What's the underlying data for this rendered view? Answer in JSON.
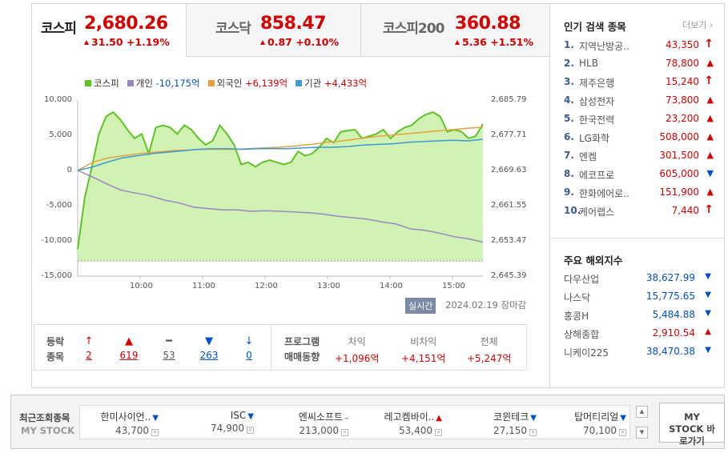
{
  "tabs": [
    {
      "name": "코스피",
      "value": "2,680.26",
      "change": "31.50 +1.19%"
    },
    {
      "name": "코스닥",
      "value": "858.47",
      "change": "0.87 +0.10%"
    },
    {
      "name": "코스피200",
      "value": "360.88",
      "change": "5.36 +1.51%"
    }
  ],
  "legend": {
    "kospi": "코스피",
    "individual_label": "개인",
    "individual_value": "-10,175억",
    "foreign_label": "외국인",
    "foreign_value": "+6,139억",
    "institution_label": "기관",
    "institution_value": "+4,433억"
  },
  "colors": {
    "up": "#d60000",
    "down": "#0050c8",
    "kospi_line": "#5cc524",
    "kospi_fill": "#c9f0a6",
    "individual": "#9b86c4",
    "foreign": "#e5a23c",
    "institution": "#3c9ad6"
  },
  "chart_data": {
    "type": "line",
    "x_ticks": [
      "10:00",
      "11:00",
      "12:00",
      "13:00",
      "14:00",
      "15:00"
    ],
    "y_left_ticks": [
      "10,000",
      "5,000",
      "0",
      "-5,000",
      "-10,000",
      "-15,000"
    ],
    "y_right_ticks": [
      "2,685.79",
      "2,677.71",
      "2,669.63",
      "2,661.55",
      "2,653.47",
      "2,645.39"
    ],
    "ylim_left": [
      -15000,
      10000
    ],
    "ylim_right": [
      2645.39,
      2685.79
    ],
    "series": [
      {
        "name": "코스피",
        "axis": "right",
        "values": [
          2651.6,
          2663.5,
          2670.5,
          2678.0,
          2682.0,
          2683.0,
          2681.3,
          2679.0,
          2677.0,
          2678.0,
          2673.5,
          2679.5,
          2680.0,
          2679.5,
          2678.0,
          2680.0,
          2679.0,
          2677.0,
          2675.5,
          2676.5,
          2680.0,
          2678.0,
          2675.5,
          2671.0,
          2671.5,
          2670.5,
          2671.5,
          2672.0,
          2671.5,
          2671.0,
          2671.5,
          2674.0,
          2673.0,
          2673.5,
          2675.0,
          2677.0,
          2676.0,
          2678.5,
          2678.8,
          2679.0,
          2677.0,
          2677.5,
          2678.0,
          2679.0,
          2677.0,
          2678.5,
          2679.5,
          2680.0,
          2681.5,
          2682.5,
          2683.0,
          2682.0,
          2678.5,
          2679.0,
          2678.5,
          2677.0,
          2677.5,
          2680.3
        ]
      },
      {
        "name": "개인",
        "axis": "left",
        "values": [
          0,
          -900,
          -1900,
          -2800,
          -3200,
          -3600,
          -4200,
          -4600,
          -5200,
          -5400,
          -5600,
          -5600,
          -5800,
          -5700,
          -5800,
          -5900,
          -6000,
          -6200,
          -6500,
          -6700,
          -6900,
          -7300,
          -7600,
          -8300,
          -8500,
          -8900,
          -9400,
          -9700,
          -10175
        ]
      },
      {
        "name": "외국인",
        "axis": "left",
        "values": [
          0,
          1200,
          1800,
          2100,
          2400,
          2600,
          2800,
          2900,
          3000,
          3000,
          3000,
          3100,
          3200,
          3300,
          3500,
          3700,
          4000,
          4200,
          4500,
          4800,
          5000,
          5200,
          5400,
          5600,
          5800,
          6000,
          6139
        ]
      },
      {
        "name": "기관",
        "axis": "left",
        "values": [
          0,
          500,
          1200,
          1800,
          2100,
          2400,
          2600,
          2800,
          3000,
          3100,
          3100,
          3000,
          3100,
          3100,
          3100,
          3200,
          3300,
          3300,
          3400,
          3600,
          3700,
          3800,
          4000,
          4100,
          4200,
          4300,
          4200,
          4433
        ]
      }
    ]
  },
  "realtime": {
    "badge": "실시간",
    "date": "2024.02.19 장마감"
  },
  "breadth": {
    "label1": "등락",
    "label2": "종목",
    "cols": [
      {
        "sym": "↑",
        "num": "2",
        "cls": "red"
      },
      {
        "sym": "▲",
        "num": "619",
        "cls": "red"
      },
      {
        "sym": "━",
        "num": "53",
        "cls": "gray"
      },
      {
        "sym": "▼",
        "num": "263",
        "cls": "blue"
      },
      {
        "sym": "↓",
        "num": "0",
        "cls": "blue"
      }
    ]
  },
  "program": {
    "label1": "프로그램",
    "label2": "매매동향",
    "cols": [
      {
        "head": "차익",
        "value": "+1,096억"
      },
      {
        "head": "비차익",
        "value": "+4,151억"
      },
      {
        "head": "전체",
        "value": "+5,247억"
      }
    ]
  },
  "popular": {
    "title": "인기 검색 종목",
    "more": "더보기",
    "items": [
      {
        "rank": "1.",
        "name": "지역난방공..",
        "price": "43,350",
        "dir": "limitup"
      },
      {
        "rank": "2.",
        "name": "HLB",
        "price": "78,800",
        "dir": "up"
      },
      {
        "rank": "3.",
        "name": "제주은행",
        "price": "15,240",
        "dir": "limitup"
      },
      {
        "rank": "4.",
        "name": "삼성전자",
        "price": "73,800",
        "dir": "up"
      },
      {
        "rank": "5.",
        "name": "한국전력",
        "price": "23,200",
        "dir": "up"
      },
      {
        "rank": "6.",
        "name": "LG화학",
        "price": "508,000",
        "dir": "up"
      },
      {
        "rank": "7.",
        "name": "엔켐",
        "price": "301,500",
        "dir": "up"
      },
      {
        "rank": "8.",
        "name": "에코프로",
        "price": "605,000",
        "dir": "down"
      },
      {
        "rank": "9.",
        "name": "한화에어로..",
        "price": "151,900",
        "dir": "up"
      },
      {
        "rank": "10.",
        "name": "케어랩스",
        "price": "7,440",
        "dir": "limitup"
      }
    ]
  },
  "world": {
    "title": "주요 해외지수",
    "items": [
      {
        "name": "다우산업",
        "value": "38,627.99",
        "dir": "down"
      },
      {
        "name": "나스닥",
        "value": "15,775.65",
        "dir": "down"
      },
      {
        "name": "홍콩H",
        "value": "5,484.88",
        "dir": "down"
      },
      {
        "name": "상해종합",
        "value": "2,910.54",
        "dir": "up"
      },
      {
        "name": "니케이225",
        "value": "38,470.38",
        "dir": "down"
      }
    ]
  },
  "mystock": {
    "label1": "최근조회종목",
    "label2": "MY STOCK",
    "button": "MY STOCK 바로가기",
    "items": [
      {
        "name": "한미사이언..",
        "price": "43,700",
        "dir": "down"
      },
      {
        "name": "ISC",
        "price": "74,900",
        "dir": "down"
      },
      {
        "name": "엔씨소프트",
        "price": "213,000",
        "dir": "flat"
      },
      {
        "name": "레고켐바이..",
        "price": "53,400",
        "dir": "up"
      },
      {
        "name": "코윈테크",
        "price": "27,150",
        "dir": "down"
      },
      {
        "name": "탑머티리얼",
        "price": "70,100",
        "dir": "down"
      }
    ]
  }
}
